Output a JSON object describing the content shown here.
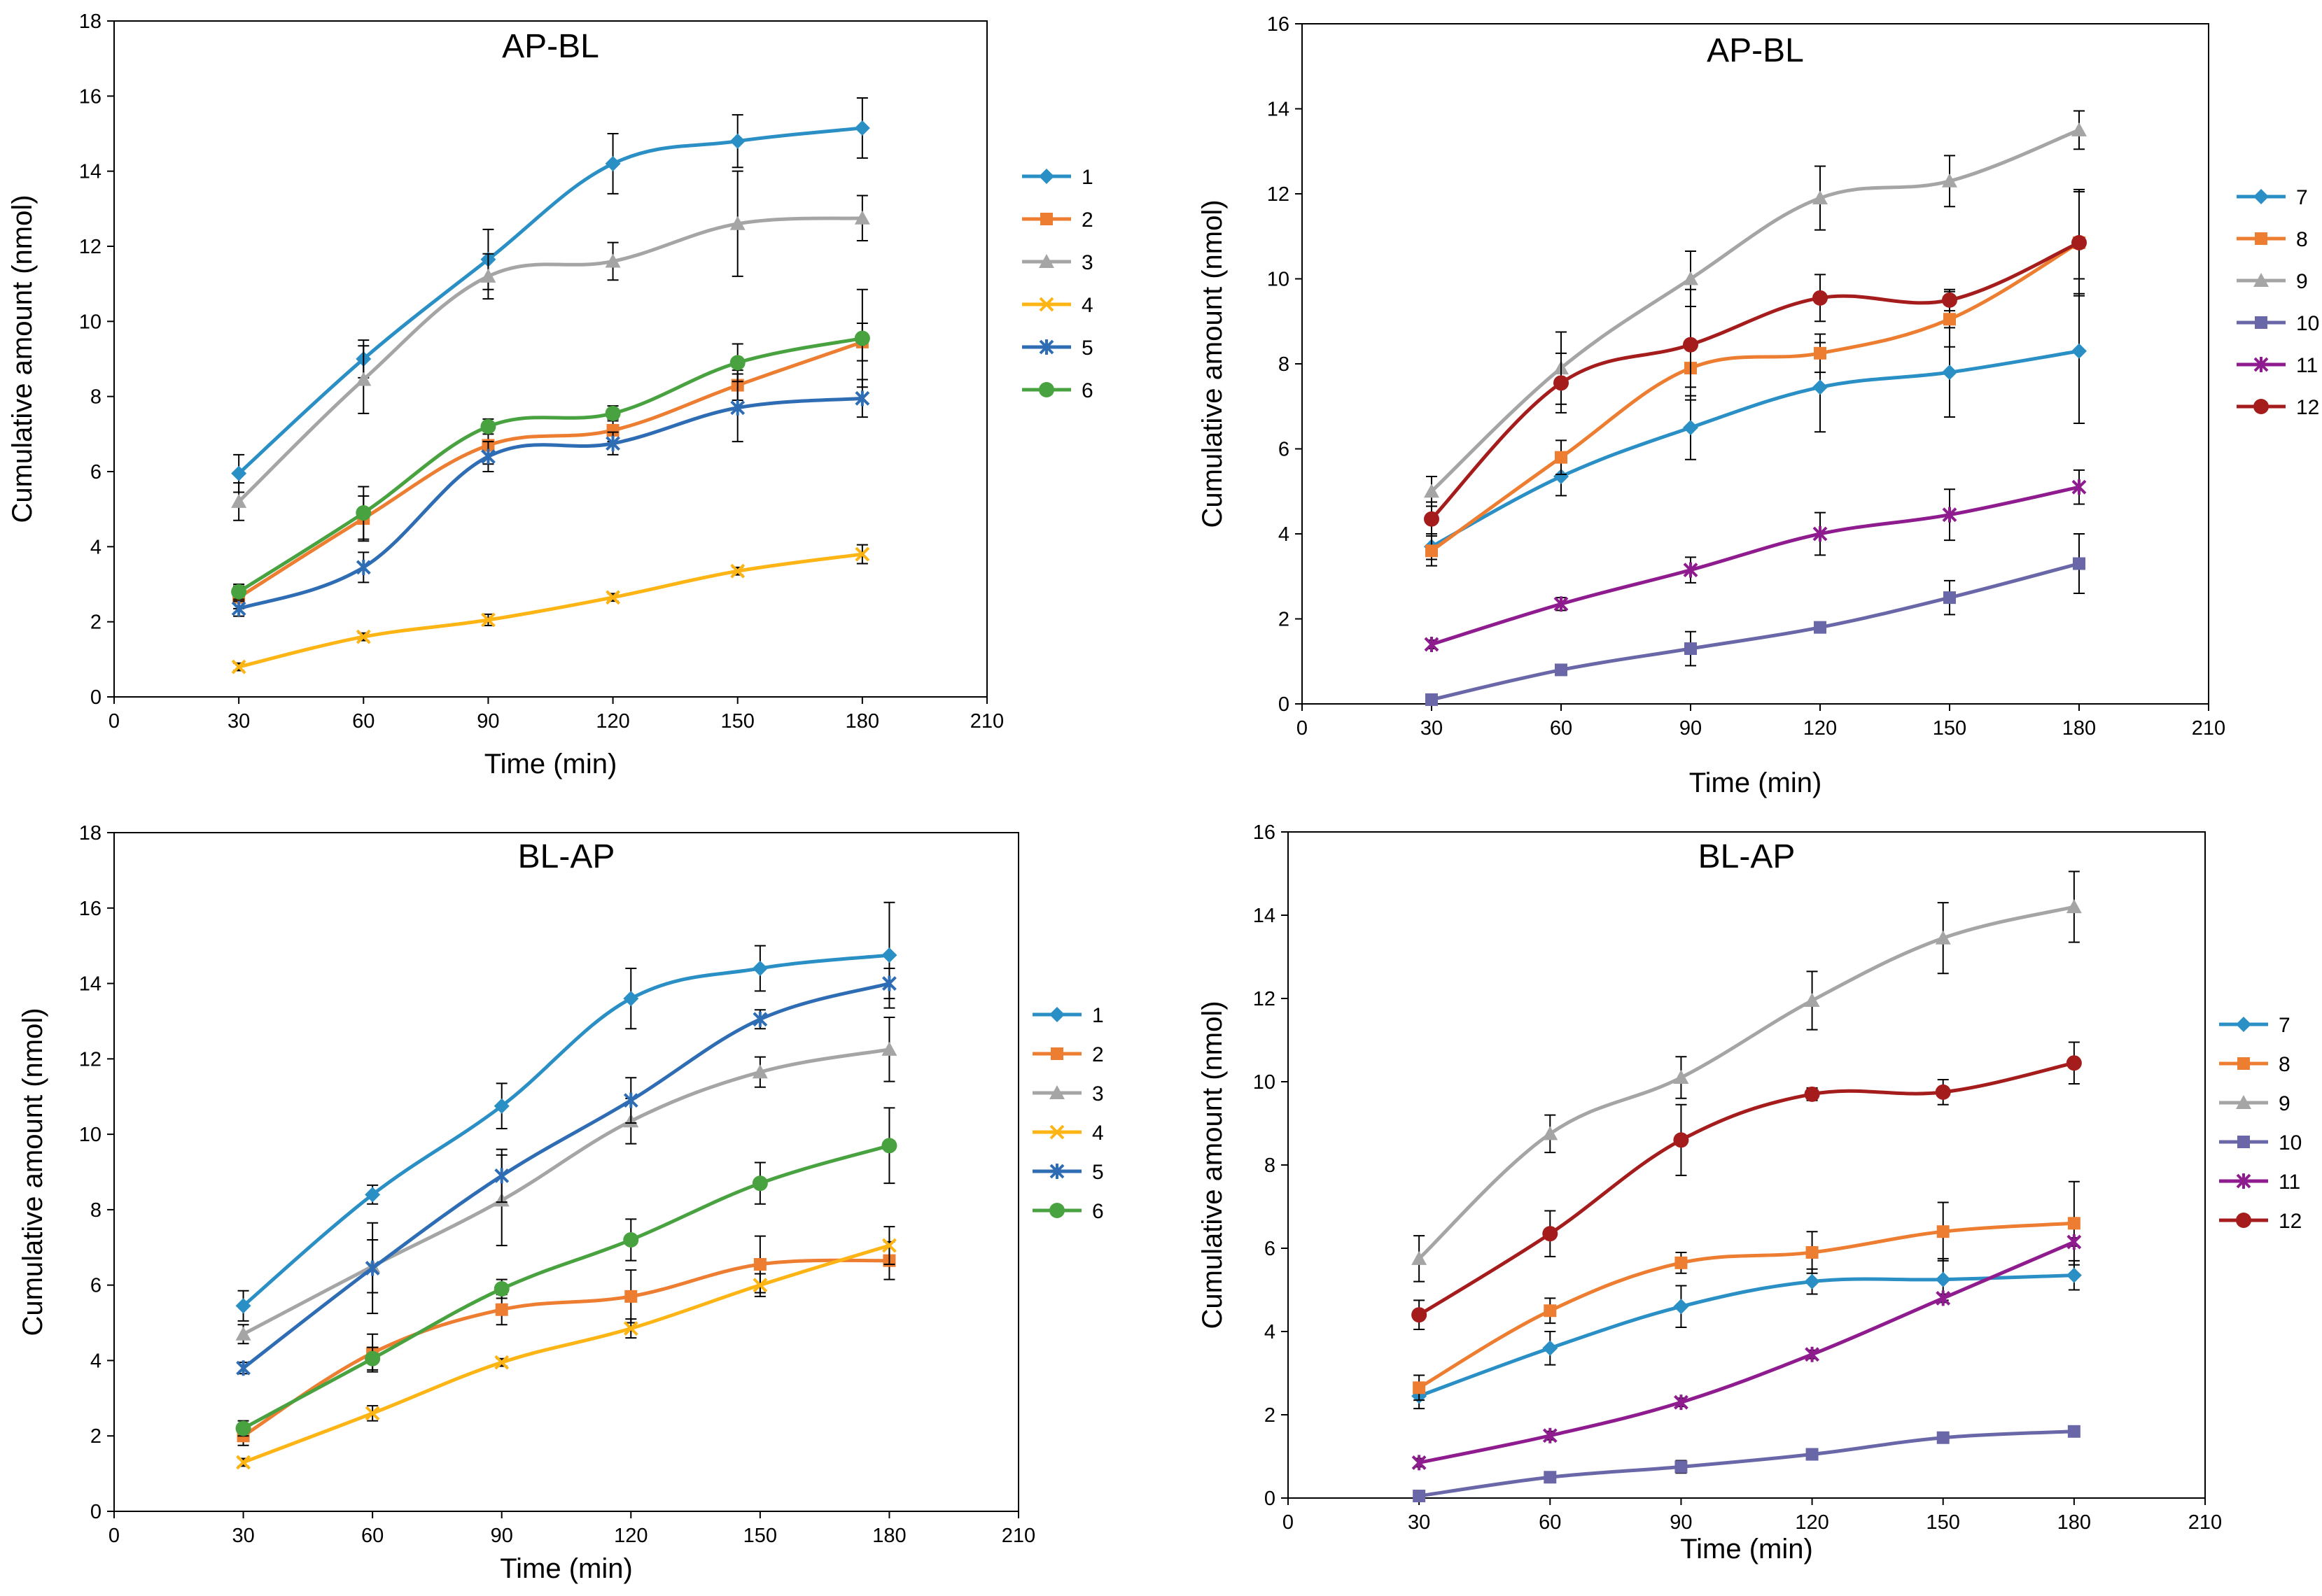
{
  "chart_data": [
    {
      "type": "line",
      "title": "AP-BL",
      "xlabel": "Time (min)",
      "ylabel": "Cumulative amount  (nmol)",
      "xlim": [
        0,
        210
      ],
      "ylim": [
        0,
        18
      ],
      "x_ticks": [
        "0",
        "30",
        "60",
        "90",
        "120",
        "150",
        "180",
        "210"
      ],
      "y_ticks": [
        "0",
        "2",
        "4",
        "6",
        "8",
        "10",
        "12",
        "14",
        "16",
        "18"
      ],
      "x": [
        30,
        60,
        90,
        120,
        150,
        180
      ],
      "legend_position": "right",
      "series": [
        {
          "name": "1",
          "color": "#2a8fc5",
          "marker": "diamond",
          "values": [
            5.95,
            9.0,
            11.65,
            14.2,
            14.8,
            15.15
          ],
          "errors": [
            0.5,
            0.5,
            0.8,
            0.8,
            0.7,
            0.8
          ]
        },
        {
          "name": "2",
          "color": "#ed7d31",
          "marker": "square",
          "values": [
            2.65,
            4.75,
            6.7,
            7.1,
            8.3,
            9.45
          ],
          "errors": [
            0.3,
            0.6,
            0.5,
            0.3,
            0.4,
            0.5
          ]
        },
        {
          "name": "3",
          "color": "#a5a5a5",
          "marker": "triangle",
          "values": [
            5.2,
            8.45,
            11.2,
            11.6,
            12.6,
            12.75
          ],
          "errors": [
            0.5,
            0.9,
            0.6,
            0.5,
            1.4,
            0.6
          ]
        },
        {
          "name": "4",
          "color": "#fdb515",
          "marker": "x",
          "values": [
            0.8,
            1.6,
            2.05,
            2.65,
            3.35,
            3.8
          ],
          "errors": [
            0.1,
            0.1,
            0.15,
            0.1,
            0.1,
            0.25
          ]
        },
        {
          "name": "5",
          "color": "#2e6db4",
          "marker": "star",
          "values": [
            2.35,
            3.45,
            6.4,
            6.75,
            7.7,
            7.95
          ],
          "errors": [
            0.2,
            0.4,
            0.4,
            0.3,
            0.9,
            0.5
          ]
        },
        {
          "name": "6",
          "color": "#48a23f",
          "marker": "circle",
          "values": [
            2.8,
            4.9,
            7.2,
            7.55,
            8.9,
            9.55
          ],
          "errors": [
            0.2,
            0.7,
            0.2,
            0.2,
            0.5,
            1.3
          ]
        }
      ]
    },
    {
      "type": "line",
      "title": "AP-BL",
      "xlabel": "Time (min)",
      "ylabel": "Cumulative amount  (nmol)",
      "xlim": [
        0,
        210
      ],
      "ylim": [
        0,
        16
      ],
      "x_ticks": [
        "0",
        "30",
        "60",
        "90",
        "120",
        "150",
        "180",
        "210"
      ],
      "y_ticks": [
        "0",
        "2",
        "4",
        "6",
        "8",
        "10",
        "12",
        "14",
        "16"
      ],
      "x": [
        30,
        60,
        90,
        120,
        150,
        180
      ],
      "legend_position": "right",
      "series": [
        {
          "name": "7",
          "color": "#2a8fc5",
          "marker": "diamond",
          "values": [
            3.7,
            5.35,
            6.5,
            7.45,
            7.8,
            8.3
          ],
          "errors": [
            0.3,
            0.45,
            0.75,
            1.05,
            1.05,
            1.7
          ]
        },
        {
          "name": "8",
          "color": "#ed7d31",
          "marker": "square",
          "values": [
            3.6,
            5.8,
            7.9,
            8.25,
            9.05,
            10.85
          ],
          "errors": [
            0.35,
            0.4,
            0.45,
            0.45,
            0.65,
            1.2
          ]
        },
        {
          "name": "9",
          "color": "#a5a5a5",
          "marker": "triangle",
          "values": [
            5.0,
            7.9,
            10.0,
            11.9,
            12.3,
            13.5
          ],
          "errors": [
            0.35,
            0.85,
            0.65,
            0.75,
            0.6,
            0.45
          ]
        },
        {
          "name": "10",
          "color": "#6a67a8",
          "marker": "square",
          "values": [
            0.1,
            0.8,
            1.3,
            1.8,
            2.5,
            3.3
          ],
          "errors": [
            0.05,
            0.1,
            0.4,
            0.1,
            0.4,
            0.7
          ]
        },
        {
          "name": "11",
          "color": "#8e1c8e",
          "marker": "star",
          "values": [
            1.4,
            2.35,
            3.15,
            4.0,
            4.45,
            5.1
          ],
          "errors": [
            0.1,
            0.15,
            0.3,
            0.5,
            0.6,
            0.4
          ]
        },
        {
          "name": "12",
          "color": "#a51c1c",
          "marker": "circle",
          "values": [
            4.35,
            7.55,
            8.45,
            9.55,
            9.5,
            10.85
          ],
          "errors": [
            0.4,
            0.7,
            1.3,
            0.55,
            0.25,
            1.25
          ]
        }
      ]
    },
    {
      "type": "line",
      "title": "BL-AP",
      "xlabel": "Time (min)",
      "ylabel": "Cumulative amount  (nmol)",
      "xlim": [
        0,
        210
      ],
      "ylim": [
        0,
        18
      ],
      "x_ticks": [
        "0",
        "30",
        "60",
        "90",
        "120",
        "150",
        "180",
        "210"
      ],
      "y_ticks": [
        "0",
        "2",
        "4",
        "6",
        "8",
        "10",
        "12",
        "14",
        "16",
        "18"
      ],
      "x": [
        30,
        60,
        90,
        120,
        150,
        180
      ],
      "legend_position": "right",
      "series": [
        {
          "name": "1",
          "color": "#2a8fc5",
          "marker": "diamond",
          "values": [
            5.45,
            8.4,
            10.75,
            13.6,
            14.4,
            14.75
          ],
          "errors": [
            0.4,
            0.25,
            0.6,
            0.8,
            0.6,
            1.4
          ]
        },
        {
          "name": "2",
          "color": "#ed7d31",
          "marker": "square",
          "values": [
            2.0,
            4.2,
            5.35,
            5.7,
            6.55,
            6.65
          ],
          "errors": [
            0.25,
            0.5,
            0.4,
            0.7,
            0.75,
            0.5
          ]
        },
        {
          "name": "3",
          "color": "#a5a5a5",
          "marker": "triangle",
          "values": [
            4.7,
            6.5,
            8.25,
            10.35,
            11.65,
            12.25
          ],
          "errors": [
            0.25,
            0.7,
            1.2,
            0.6,
            0.4,
            0.85
          ]
        },
        {
          "name": "4",
          "color": "#fdb515",
          "marker": "x",
          "values": [
            1.3,
            2.6,
            3.95,
            4.85,
            6.0,
            7.05
          ],
          "errors": [
            0.1,
            0.2,
            0.1,
            0.25,
            0.3,
            0.5
          ]
        },
        {
          "name": "5",
          "color": "#2e6db4",
          "marker": "star",
          "values": [
            3.8,
            6.45,
            8.9,
            10.9,
            13.05,
            14.0
          ],
          "errors": [
            0.15,
            1.2,
            0.7,
            0.6,
            0.25,
            0.4
          ]
        },
        {
          "name": "6",
          "color": "#48a23f",
          "marker": "circle",
          "values": [
            2.2,
            4.05,
            5.9,
            7.2,
            8.7,
            9.7
          ],
          "errors": [
            0.2,
            0.3,
            0.25,
            0.55,
            0.55,
            1.0
          ]
        }
      ]
    },
    {
      "type": "line",
      "title": "BL-AP",
      "xlabel": "Time (min)",
      "ylabel": "Cumulative amount  (nmol)",
      "xlim": [
        0,
        210
      ],
      "ylim": [
        0,
        16
      ],
      "x_ticks": [
        "0",
        "30",
        "60",
        "90",
        "120",
        "150",
        "180",
        "210"
      ],
      "y_ticks": [
        "0",
        "2",
        "4",
        "6",
        "8",
        "10",
        "12",
        "14",
        "16"
      ],
      "x": [
        30,
        60,
        90,
        120,
        150,
        180
      ],
      "legend_position": "right",
      "series": [
        {
          "name": "7",
          "color": "#2a8fc5",
          "marker": "diamond",
          "values": [
            2.45,
            3.6,
            4.6,
            5.2,
            5.25,
            5.35
          ],
          "errors": [
            0.3,
            0.4,
            0.5,
            0.3,
            0.5,
            0.35
          ]
        },
        {
          "name": "8",
          "color": "#ed7d31",
          "marker": "square",
          "values": [
            2.65,
            4.5,
            5.65,
            5.9,
            6.4,
            6.6
          ],
          "errors": [
            0.3,
            0.3,
            0.25,
            0.5,
            0.7,
            1.0
          ]
        },
        {
          "name": "9",
          "color": "#a5a5a5",
          "marker": "triangle",
          "values": [
            5.75,
            8.75,
            10.1,
            11.95,
            13.45,
            14.2
          ],
          "errors": [
            0.55,
            0.45,
            0.5,
            0.7,
            0.85,
            0.85
          ]
        },
        {
          "name": "10",
          "color": "#6a67a8",
          "marker": "square",
          "values": [
            0.05,
            0.5,
            0.75,
            1.05,
            1.45,
            1.6
          ],
          "errors": [
            0.05,
            0.1,
            0.15,
            0.05,
            0.05,
            0.05
          ]
        },
        {
          "name": "11",
          "color": "#8e1c8e",
          "marker": "star",
          "values": [
            0.85,
            1.5,
            2.3,
            3.45,
            4.8,
            6.15
          ],
          "errors": [
            0.1,
            0.1,
            0.1,
            0.1,
            0.1,
            0.1
          ]
        },
        {
          "name": "12",
          "color": "#a51c1c",
          "marker": "circle",
          "values": [
            4.4,
            6.35,
            8.6,
            9.7,
            9.75,
            10.45
          ],
          "errors": [
            0.35,
            0.55,
            0.85,
            0.15,
            0.3,
            0.5
          ]
        }
      ]
    }
  ]
}
